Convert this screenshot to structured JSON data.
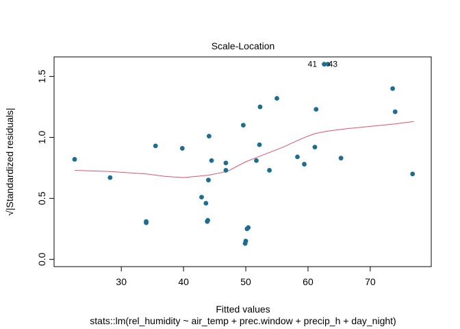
{
  "chart_data": {
    "type": "scatter",
    "title": "Scale-Location",
    "xlabel": "Fitted values",
    "ylabel": "√|Standardized residuals|",
    "subtitle": "stats::lm(rel_humidity ~ air_temp + prec.window + precip_h + day_night)",
    "xlim": [
      19.2,
      79.8
    ],
    "ylim": [
      -0.06,
      1.66
    ],
    "x_ticks": [
      30,
      40,
      50,
      60,
      70
    ],
    "y_ticks": [
      0.0,
      0.5,
      1.0,
      1.5
    ],
    "y_tick_labels": [
      "0.0",
      "0.5",
      "1.0",
      "1.5"
    ],
    "grid": false,
    "point_color": "#1a6e94",
    "smooth_color": "#df536b",
    "points": [
      {
        "x": 22.5,
        "y": 0.82
      },
      {
        "x": 28.2,
        "y": 0.67
      },
      {
        "x": 34.0,
        "y": 0.3
      },
      {
        "x": 34.0,
        "y": 0.31
      },
      {
        "x": 35.5,
        "y": 0.93
      },
      {
        "x": 39.8,
        "y": 0.91
      },
      {
        "x": 42.9,
        "y": 0.51
      },
      {
        "x": 43.6,
        "y": 0.46
      },
      {
        "x": 43.8,
        "y": 0.31
      },
      {
        "x": 43.9,
        "y": 0.32
      },
      {
        "x": 44.0,
        "y": 0.65
      },
      {
        "x": 44.1,
        "y": 1.01
      },
      {
        "x": 44.5,
        "y": 0.81
      },
      {
        "x": 46.8,
        "y": 0.79
      },
      {
        "x": 46.8,
        "y": 0.73
      },
      {
        "x": 49.6,
        "y": 1.1
      },
      {
        "x": 49.9,
        "y": 0.13
      },
      {
        "x": 50.0,
        "y": 0.15
      },
      {
        "x": 50.2,
        "y": 0.25
      },
      {
        "x": 50.4,
        "y": 0.26
      },
      {
        "x": 51.7,
        "y": 0.81
      },
      {
        "x": 52.2,
        "y": 0.94
      },
      {
        "x": 52.3,
        "y": 1.25
      },
      {
        "x": 53.8,
        "y": 0.73
      },
      {
        "x": 55.0,
        "y": 1.32
      },
      {
        "x": 58.3,
        "y": 0.84
      },
      {
        "x": 59.4,
        "y": 0.78
      },
      {
        "x": 61.1,
        "y": 0.92
      },
      {
        "x": 61.3,
        "y": 1.23
      },
      {
        "x": 62.6,
        "y": 1.6
      },
      {
        "x": 63.2,
        "y": 1.6
      },
      {
        "x": 65.3,
        "y": 0.83
      },
      {
        "x": 73.6,
        "y": 1.4
      },
      {
        "x": 74.0,
        "y": 1.21
      },
      {
        "x": 76.8,
        "y": 0.7
      }
    ],
    "smooth_line": {
      "x": [
        22.5,
        28.2,
        34.0,
        37.0,
        40.0,
        44.0,
        47.0,
        50.0,
        53.0,
        56.0,
        59.0,
        61.0,
        63.0,
        66.0,
        70.0,
        74.0,
        77.0
      ],
      "y": [
        0.73,
        0.72,
        0.7,
        0.68,
        0.67,
        0.69,
        0.72,
        0.8,
        0.86,
        0.92,
        0.99,
        1.03,
        1.05,
        1.07,
        1.09,
        1.11,
        1.13
      ]
    },
    "annotations": [
      {
        "text": "41",
        "x": 60.7,
        "y": 1.6
      },
      {
        "text": "43",
        "x": 64.0,
        "y": 1.6
      }
    ]
  }
}
